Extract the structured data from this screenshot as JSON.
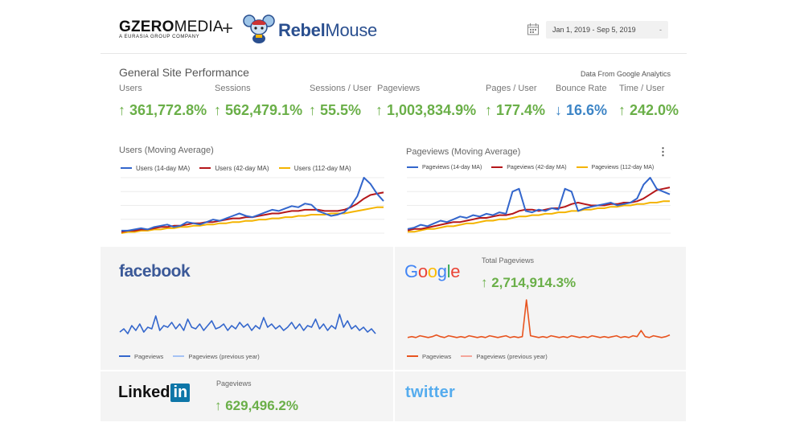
{
  "header": {
    "brand_left": "GZEROMEDIA",
    "brand_left_bold": "GZERO",
    "brand_left_thin": "MEDIA",
    "brand_left_sub": "A EURASIA GROUP COMPANY",
    "plus": "+",
    "brand_right_bold": "Rebel",
    "brand_right_thin": "Mouse",
    "date_range": "Jan 1, 2019 - Sep 5, 2019",
    "date_caret": "-"
  },
  "performance": {
    "title": "General Site Performance",
    "source": "Data From Google Analytics",
    "metrics": [
      {
        "label": "Users",
        "value": "↑ 361,772.8%",
        "direction": "up"
      },
      {
        "label": "Sessions",
        "value": "↑ 562,479.1%",
        "direction": "up"
      },
      {
        "label": "Sessions / User",
        "value": "↑ 55.5%",
        "direction": "up"
      },
      {
        "label": "Pageviews",
        "value": "↑ 1,003,834.9%",
        "direction": "up"
      },
      {
        "label": "Pages / User",
        "value": "↑ 177.4%",
        "direction": "up"
      },
      {
        "label": "Bounce Rate",
        "value": "↓ 16.6%",
        "direction": "down"
      },
      {
        "label": "Time / User",
        "value": "↑ 242.0%",
        "direction": "up"
      }
    ]
  },
  "users_chart": {
    "title": "Users (Moving Average)",
    "legend": [
      "Users (14-day MA)",
      "Users (42-day MA)",
      "Users (112-day MA)"
    ],
    "colors": [
      "#3366cc",
      "#b5171a",
      "#f4b400"
    ],
    "chart_data": {
      "type": "line",
      "series": [
        {
          "name": "Users (14-day MA)",
          "values": [
            2,
            2,
            3,
            4,
            3,
            5,
            6,
            7,
            5,
            6,
            9,
            8,
            7,
            9,
            11,
            10,
            12,
            14,
            16,
            14,
            13,
            15,
            17,
            19,
            18,
            20,
            22,
            21,
            24,
            23,
            18,
            16,
            14,
            15,
            17,
            22,
            30,
            45,
            40,
            32,
            26
          ]
        },
        {
          "name": "Users (42-day MA)",
          "values": [
            1,
            2,
            2,
            3,
            3,
            4,
            5,
            5,
            6,
            6,
            7,
            8,
            8,
            9,
            9,
            10,
            11,
            12,
            12,
            13,
            13,
            14,
            15,
            16,
            16,
            17,
            18,
            18,
            19,
            19,
            19,
            18,
            18,
            18,
            19,
            21,
            24,
            28,
            31,
            32,
            33
          ]
        },
        {
          "name": "Users (112-day MA)",
          "values": [
            0,
            1,
            1,
            2,
            2,
            3,
            3,
            4,
            4,
            5,
            5,
            6,
            6,
            7,
            7,
            8,
            8,
            9,
            9,
            10,
            10,
            11,
            11,
            12,
            12,
            13,
            13,
            14,
            14,
            15,
            15,
            15,
            16,
            16,
            16,
            17,
            18,
            19,
            20,
            21,
            21
          ]
        }
      ]
    }
  },
  "pageviews_chart": {
    "title": "Pageviews (Moving Average)",
    "legend": [
      "Pageviews (14-day MA)",
      "Pageviews (42-day MA)",
      "Pageviews (112-day MA)"
    ],
    "colors": [
      "#3366cc",
      "#b5171a",
      "#f4b400"
    ],
    "chart_data": {
      "type": "line",
      "series": [
        {
          "name": "Pageviews (14-day MA)",
          "values": [
            3,
            4,
            6,
            5,
            7,
            9,
            8,
            10,
            12,
            11,
            13,
            12,
            14,
            13,
            15,
            14,
            30,
            32,
            16,
            15,
            17,
            16,
            18,
            17,
            32,
            30,
            16,
            18,
            19,
            20,
            21,
            22,
            20,
            21,
            22,
            25,
            35,
            40,
            32,
            30,
            28
          ]
        },
        {
          "name": "Pageviews (42-day MA)",
          "values": [
            2,
            3,
            3,
            4,
            5,
            6,
            7,
            8,
            8,
            9,
            10,
            11,
            11,
            12,
            13,
            13,
            14,
            16,
            17,
            17,
            16,
            17,
            18,
            18,
            19,
            21,
            22,
            21,
            20,
            20,
            20,
            21,
            21,
            22,
            22,
            23,
            25,
            28,
            31,
            32,
            33
          ]
        },
        {
          "name": "Pageviews (112-day MA)",
          "values": [
            1,
            1,
            2,
            3,
            3,
            4,
            5,
            5,
            6,
            7,
            7,
            8,
            9,
            9,
            10,
            10,
            11,
            12,
            12,
            13,
            13,
            14,
            14,
            15,
            15,
            16,
            16,
            17,
            17,
            18,
            18,
            19,
            19,
            20,
            20,
            21,
            21,
            22,
            22,
            23,
            23
          ]
        }
      ]
    }
  },
  "facebook": {
    "logo": "facebook",
    "legend": [
      "Pageviews",
      "Pageviews (previous year)"
    ],
    "colors": [
      "#3366cc",
      "#a4c2f4"
    ],
    "chart_data": {
      "type": "line",
      "series": [
        {
          "name": "Pageviews",
          "values": [
            4,
            6,
            3,
            8,
            5,
            9,
            4,
            7,
            6,
            14,
            5,
            8,
            7,
            10,
            6,
            9,
            5,
            12,
            7,
            6,
            9,
            5,
            8,
            11,
            6,
            7,
            9,
            5,
            8,
            6,
            10,
            7,
            9,
            5,
            8,
            6,
            13,
            7,
            9,
            6,
            8,
            5,
            7,
            10,
            6,
            9,
            5,
            8,
            7,
            12,
            6,
            9,
            5,
            8,
            6,
            15,
            7,
            11,
            6,
            8,
            5,
            7,
            4,
            6,
            3
          ]
        },
        {
          "name": "Pageviews (previous year)",
          "values": []
        }
      ]
    }
  },
  "google": {
    "logo": "Google",
    "metric_label": "Total Pageviews",
    "metric_value": "↑ 2,714,914.3%",
    "legend": [
      "Pageviews",
      "Pageviews (previous year)"
    ],
    "colors": [
      "#e8541f",
      "#f4a59a"
    ],
    "chart_data": {
      "type": "line",
      "series": [
        {
          "name": "Pageviews",
          "values": [
            2,
            3,
            2,
            4,
            3,
            2,
            3,
            5,
            3,
            2,
            4,
            3,
            2,
            3,
            2,
            4,
            3,
            2,
            3,
            2,
            4,
            3,
            2,
            3,
            4,
            2,
            3,
            2,
            3,
            45,
            4,
            3,
            2,
            3,
            2,
            4,
            3,
            2,
            3,
            2,
            4,
            3,
            2,
            3,
            2,
            4,
            3,
            2,
            3,
            2,
            3,
            4,
            2,
            3,
            2,
            4,
            3,
            10,
            3,
            2,
            4,
            3,
            2,
            3,
            5
          ]
        },
        {
          "name": "Pageviews (previous year)",
          "values": []
        }
      ]
    }
  },
  "linkedin": {
    "logo_text": "Linked",
    "logo_box": "in",
    "metric_label": "Pageviews",
    "metric_value": "↑ 629,496.2%"
  },
  "twitter": {
    "logo": "twitter"
  }
}
